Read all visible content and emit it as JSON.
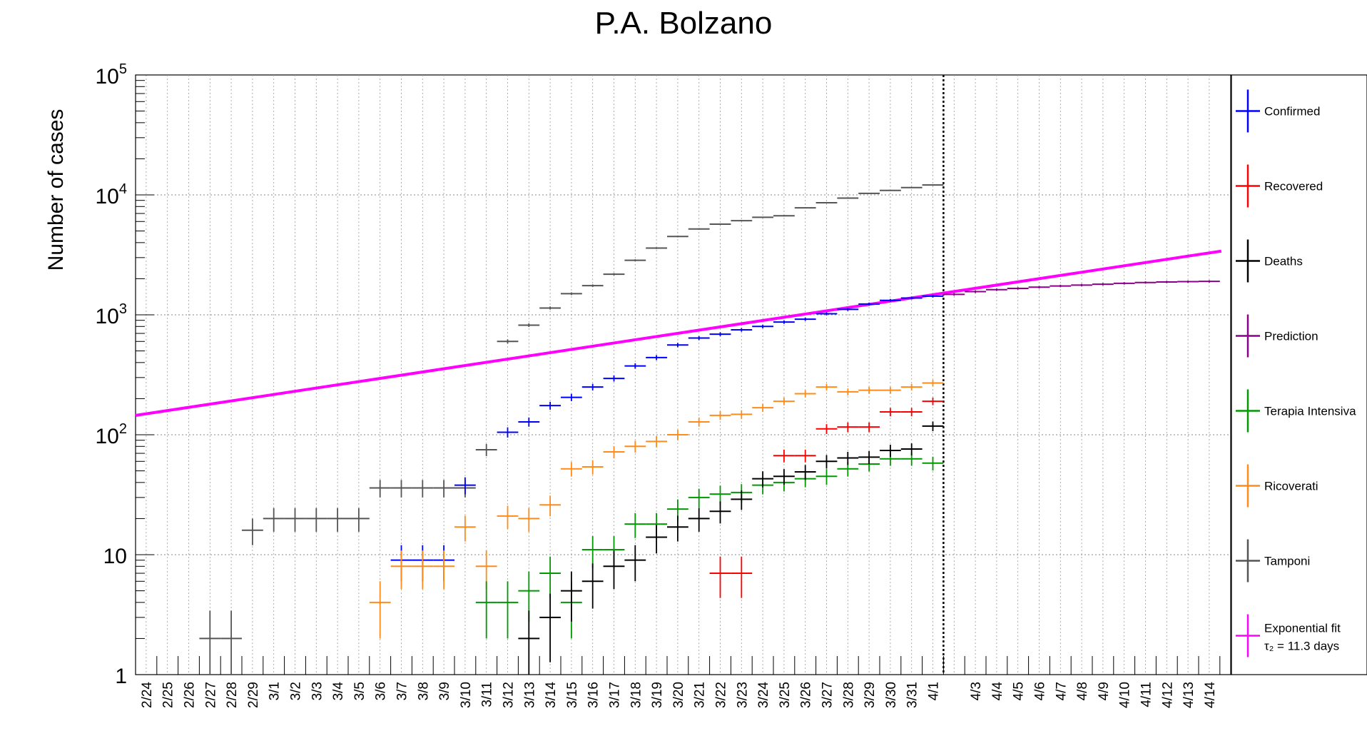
{
  "chart_data": {
    "type": "scatter",
    "title": "P.A. Bolzano",
    "xlabel": "",
    "ylabel": "Number of cases",
    "y_scale": "log",
    "ylim": [
      1,
      100000
    ],
    "grid": true,
    "legend_position": "right",
    "y_ticks": [
      {
        "value": 1,
        "base": "1",
        "exp": ""
      },
      {
        "value": 10,
        "base": "10",
        "exp": ""
      },
      {
        "value": 100,
        "base": "10",
        "exp": "2"
      },
      {
        "value": 1000,
        "base": "10",
        "exp": "3"
      },
      {
        "value": 10000,
        "base": "10",
        "exp": "4"
      },
      {
        "value": 100000,
        "base": "10",
        "exp": "5"
      }
    ],
    "categories": [
      "2/24",
      "2/25",
      "2/26",
      "2/27",
      "2/28",
      "2/29",
      "3/1",
      "3/2",
      "3/3",
      "3/4",
      "3/5",
      "3/6",
      "3/7",
      "3/8",
      "3/9",
      "3/10",
      "3/11",
      "3/12",
      "3/13",
      "3/14",
      "3/15",
      "3/16",
      "3/17",
      "3/18",
      "3/19",
      "3/20",
      "3/21",
      "3/22",
      "3/23",
      "3/24",
      "3/25",
      "3/26",
      "3/27",
      "3/28",
      "3/29",
      "3/30",
      "3/31",
      "4/1",
      "4/2",
      "4/3",
      "4/4",
      "4/5",
      "4/6",
      "4/7",
      "4/8",
      "4/9",
      "4/10",
      "4/11",
      "4/12",
      "4/13",
      "4/14"
    ],
    "x_tick_labels": [
      "2/24",
      "2/25",
      "2/26",
      "2/27",
      "2/28",
      "2/29",
      "3/1",
      "3/2",
      "3/3",
      "3/4",
      "3/5",
      "3/6",
      "3/7",
      "3/8",
      "3/9",
      "3/10",
      "3/11",
      "3/12",
      "3/13",
      "3/14",
      "3/15",
      "3/16",
      "3/17",
      "3/18",
      "3/19",
      "3/20",
      "3/21",
      "3/22",
      "3/23",
      "3/24",
      "3/25",
      "3/26",
      "3/27",
      "3/28",
      "3/29",
      "3/30",
      "3/31",
      "4/1",
      "4/3",
      "4/4",
      "4/5",
      "4/6",
      "4/7",
      "4/8",
      "4/9",
      "4/10",
      "4/11",
      "4/12",
      "4/13",
      "4/14"
    ],
    "vertical_marker_at": "4/2",
    "series": [
      {
        "name": "Tamponi",
        "color": "#555555",
        "values": [
          null,
          null,
          null,
          2,
          2,
          16,
          20,
          20,
          20,
          20,
          20,
          36,
          36,
          36,
          36,
          36,
          75,
          600,
          820,
          1140,
          1500,
          1750,
          2180,
          2850,
          3600,
          4500,
          5200,
          5700,
          6100,
          6500,
          6700,
          7800,
          8600,
          9400,
          10300,
          10900,
          11500,
          12100
        ]
      },
      {
        "name": "Confirmed",
        "color": "#0000ff",
        "values": [
          null,
          null,
          null,
          null,
          null,
          null,
          null,
          null,
          null,
          null,
          null,
          null,
          9,
          9,
          9,
          38,
          null,
          105,
          128,
          175,
          205,
          250,
          295,
          375,
          440,
          560,
          640,
          690,
          750,
          800,
          870,
          920,
          1020,
          1110,
          1230,
          1320,
          1380,
          1430
        ]
      },
      {
        "name": "Ricoverati",
        "color": "#ff8c1a",
        "values": [
          null,
          null,
          null,
          null,
          null,
          null,
          null,
          null,
          null,
          null,
          null,
          4,
          8,
          8,
          8,
          17,
          8,
          21,
          20,
          26,
          52,
          54,
          72,
          80,
          88,
          100,
          128,
          145,
          148,
          168,
          190,
          220,
          250,
          228,
          235,
          235,
          250,
          270
        ]
      },
      {
        "name": "Terapia Intensiva",
        "color": "#009900",
        "values": [
          null,
          null,
          null,
          null,
          null,
          null,
          null,
          null,
          null,
          null,
          null,
          null,
          null,
          null,
          null,
          null,
          4,
          4,
          5,
          7,
          4,
          11,
          11,
          18,
          18,
          24,
          30,
          32,
          33,
          38,
          40,
          43,
          45,
          52,
          57,
          63,
          63,
          58
        ]
      },
      {
        "name": "Deaths",
        "color": "#000000",
        "values": [
          null,
          null,
          null,
          null,
          null,
          null,
          null,
          null,
          null,
          null,
          null,
          null,
          null,
          null,
          null,
          null,
          null,
          null,
          2,
          3,
          5,
          6,
          8,
          9,
          14,
          17,
          20,
          23,
          29,
          43,
          45,
          49,
          60,
          64,
          65,
          74,
          76,
          118
        ]
      },
      {
        "name": "Recovered",
        "color": "#ff0000",
        "values": [
          null,
          null,
          null,
          null,
          null,
          null,
          null,
          null,
          null,
          null,
          null,
          null,
          null,
          null,
          null,
          null,
          null,
          null,
          null,
          null,
          null,
          null,
          null,
          null,
          null,
          null,
          null,
          7,
          7,
          null,
          67,
          67,
          112,
          116,
          116,
          155,
          155,
          190
        ]
      },
      {
        "name": "Prediction",
        "color": "#8b008b",
        "values": [
          null,
          null,
          null,
          null,
          null,
          null,
          null,
          null,
          null,
          null,
          null,
          null,
          null,
          null,
          null,
          null,
          null,
          null,
          null,
          null,
          null,
          null,
          null,
          null,
          null,
          null,
          null,
          null,
          null,
          null,
          null,
          null,
          null,
          null,
          null,
          null,
          null,
          null,
          1480,
          1560,
          1620,
          1660,
          1700,
          1740,
          1770,
          1800,
          1830,
          1860,
          1880,
          1890,
          1900
        ]
      },
      {
        "name": "Exponential fit",
        "color": "#ff00ff",
        "line": true,
        "from": 145,
        "to": 3400,
        "label_line2": "τ₂ = 11.3 days"
      }
    ],
    "legend": [
      {
        "label": "Confirmed",
        "color": "#0000ff"
      },
      {
        "label": "Recovered",
        "color": "#ff0000"
      },
      {
        "label": "Deaths",
        "color": "#000000"
      },
      {
        "label": "Prediction",
        "color": "#8b008b"
      },
      {
        "label": "Terapia Intensiva",
        "color": "#009900"
      },
      {
        "label": "Ricoverati",
        "color": "#ff8c1a"
      },
      {
        "label": "Tamponi",
        "color": "#555555"
      },
      {
        "label": "Exponential fit",
        "label2": "τ₂ = 11.3 days",
        "color": "#ff00ff"
      }
    ]
  }
}
